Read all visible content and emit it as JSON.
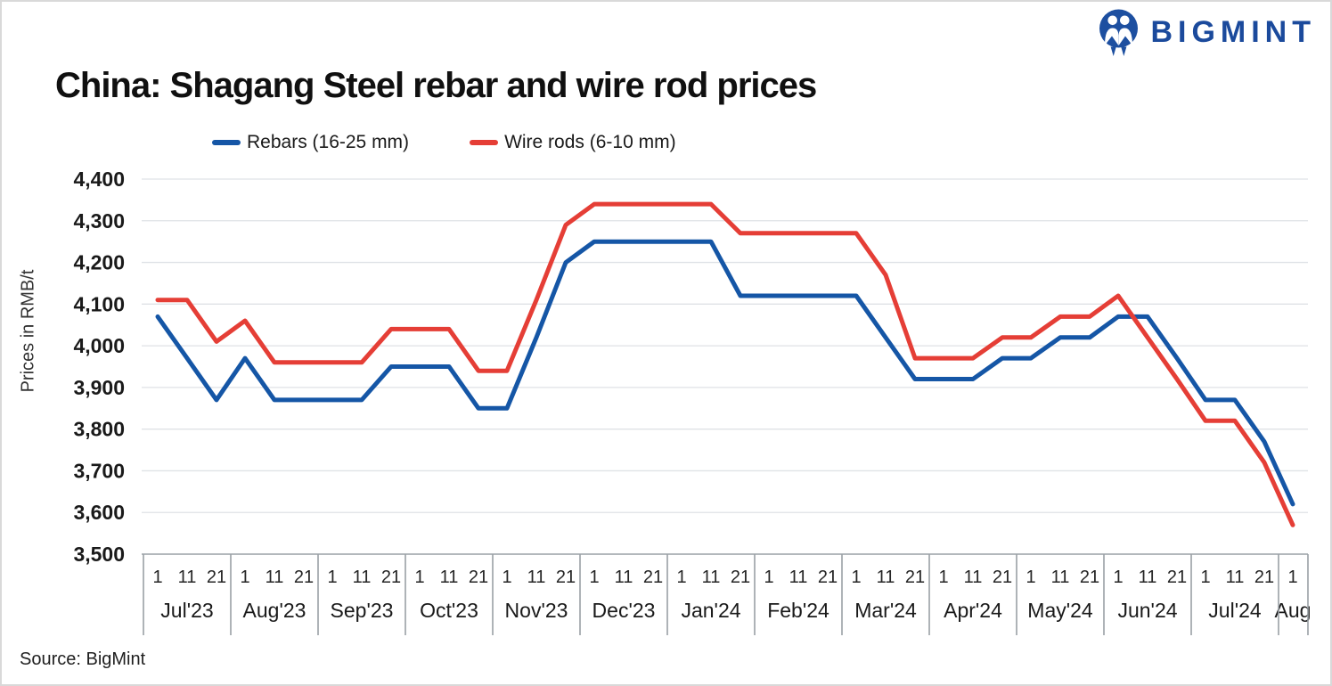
{
  "page": {
    "title": "China: Shagang Steel rebar and wire rod prices",
    "source_note": "Source: BigMint",
    "brand_name": "BIGMINT"
  },
  "legend": [
    {
      "label": "Rebars (16-25 mm)",
      "color": "#1556A6"
    },
    {
      "label": "Wire rods (6-10 mm)",
      "color": "#E53E36"
    }
  ],
  "chart_data": {
    "type": "line",
    "title": "China: Shagang Steel rebar and wire rod prices",
    "ylabel": "Prices in RMB/t",
    "ylim": [
      3500,
      4400
    ],
    "ytick_step": 100,
    "grid": true,
    "legend_position": "top",
    "x_groups": [
      {
        "label": "Jul'23",
        "days": [
          "1",
          "11",
          "21"
        ]
      },
      {
        "label": "Aug'23",
        "days": [
          "1",
          "11",
          "21"
        ]
      },
      {
        "label": "Sep'23",
        "days": [
          "1",
          "11",
          "21"
        ]
      },
      {
        "label": "Oct'23",
        "days": [
          "1",
          "11",
          "21"
        ]
      },
      {
        "label": "Nov'23",
        "days": [
          "1",
          "11",
          "21"
        ]
      },
      {
        "label": "Dec'23",
        "days": [
          "1",
          "11",
          "21"
        ]
      },
      {
        "label": "Jan'24",
        "days": [
          "1",
          "11",
          "21"
        ]
      },
      {
        "label": "Feb'24",
        "days": [
          "1",
          "11",
          "21"
        ]
      },
      {
        "label": "Mar'24",
        "days": [
          "1",
          "11",
          "21"
        ]
      },
      {
        "label": "Apr'24",
        "days": [
          "1",
          "11",
          "21"
        ]
      },
      {
        "label": "May'24",
        "days": [
          "1",
          "11",
          "21"
        ]
      },
      {
        "label": "Jun'24",
        "days": [
          "1",
          "11",
          "21"
        ]
      },
      {
        "label": "Jul'24",
        "days": [
          "1",
          "11",
          "21"
        ]
      },
      {
        "label": "Aug",
        "days": [
          "1"
        ]
      }
    ],
    "series": [
      {
        "name": "Rebars (16-25 mm)",
        "color": "#1556A6",
        "values": [
          4070,
          3970,
          3870,
          3970,
          3870,
          3870,
          3870,
          3870,
          3950,
          3950,
          3950,
          3850,
          3850,
          4020,
          4200,
          4250,
          4250,
          4250,
          4250,
          4250,
          4120,
          4120,
          4120,
          4120,
          4120,
          4020,
          3920,
          3920,
          3920,
          3970,
          3970,
          4020,
          4020,
          4070,
          4070,
          3970,
          3870,
          3870,
          3770,
          3620
        ]
      },
      {
        "name": "Wire rods (6-10 mm)",
        "color": "#E53E36",
        "values": [
          4110,
          4110,
          4010,
          4060,
          3960,
          3960,
          3960,
          3960,
          4040,
          4040,
          4040,
          3940,
          3940,
          4110,
          4290,
          4340,
          4340,
          4340,
          4340,
          4340,
          4270,
          4270,
          4270,
          4270,
          4270,
          4170,
          3970,
          3970,
          3970,
          4020,
          4020,
          4070,
          4070,
          4120,
          4020,
          3920,
          3820,
          3820,
          3720,
          3570
        ]
      }
    ]
  }
}
